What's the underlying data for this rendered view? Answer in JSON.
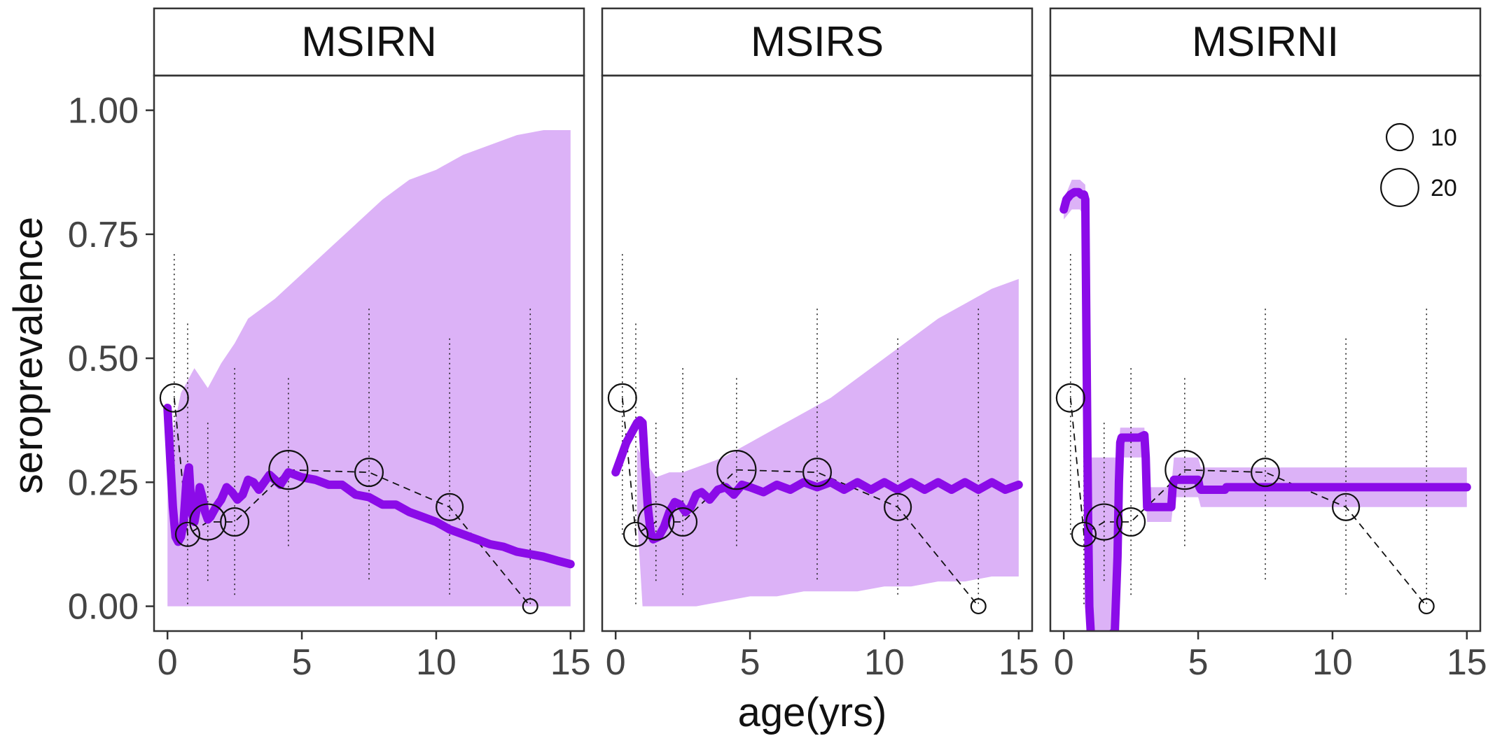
{
  "chart_data": {
    "type": "line",
    "ylabel": "seroprevalence",
    "xlabel": "age(yrs)",
    "xlim": [
      -0.5,
      15.5
    ],
    "ylim": [
      -0.05,
      1.07
    ],
    "x_ticks": [
      0,
      5,
      10,
      15
    ],
    "x_tick_labels": [
      "0",
      "5",
      "10",
      "15"
    ],
    "y_ticks": [
      0,
      0.25,
      0.5,
      0.75,
      1.0
    ],
    "y_tick_labels": [
      "0.00",
      "0.25",
      "0.50",
      "0.75",
      "1.00"
    ],
    "grid": false,
    "colors": {
      "line": "#8b0be8",
      "ribbon": "#dcb2f7",
      "points": "#111111",
      "strip_line": "#333333"
    },
    "legend": {
      "placement": "top-right",
      "title": "",
      "entries": [
        {
          "label": "10",
          "size": 10
        },
        {
          "label": "20",
          "size": 20
        }
      ]
    },
    "observed": {
      "description_free": true,
      "x": [
        0.25,
        0.75,
        1.5,
        2.5,
        4.5,
        7.5,
        10.5,
        13.5
      ],
      "y": [
        0.42,
        0.145,
        0.17,
        0.17,
        0.275,
        0.27,
        0.2,
        0.0
      ],
      "n": [
        11,
        8,
        18,
        11,
        21,
        11,
        10,
        3
      ],
      "ci_upper": [
        0.71,
        0.57,
        0.37,
        0.48,
        0.46,
        0.6,
        0.54,
        0.6
      ],
      "ci_lower": [
        0.14,
        0.0,
        0.05,
        0.02,
        0.12,
        0.05,
        0.02,
        0.0
      ]
    },
    "panels": [
      {
        "title": "MSIRN",
        "fit": {
          "x": [
            0,
            0.1,
            0.2,
            0.3,
            0.4,
            0.5,
            0.6,
            0.7,
            0.8,
            0.9,
            1.0,
            1.1,
            1.2,
            1.3,
            1.4,
            1.5,
            1.6,
            1.8,
            2.0,
            2.2,
            2.4,
            2.6,
            2.8,
            3.0,
            3.2,
            3.4,
            3.6,
            3.8,
            4.0,
            4.2,
            4.5,
            5.0,
            5.5,
            6.0,
            6.5,
            7.0,
            7.5,
            8.0,
            8.5,
            9.0,
            9.5,
            10.0,
            10.5,
            11.0,
            11.5,
            12.0,
            12.5,
            13.0,
            13.5,
            14.0,
            14.5,
            15.0
          ],
          "y": [
            0.4,
            0.3,
            0.2,
            0.14,
            0.13,
            0.14,
            0.17,
            0.25,
            0.28,
            0.19,
            0.17,
            0.2,
            0.24,
            0.22,
            0.19,
            0.175,
            0.18,
            0.2,
            0.215,
            0.24,
            0.23,
            0.215,
            0.225,
            0.255,
            0.25,
            0.235,
            0.25,
            0.265,
            0.255,
            0.245,
            0.27,
            0.26,
            0.255,
            0.245,
            0.245,
            0.225,
            0.22,
            0.205,
            0.205,
            0.19,
            0.18,
            0.17,
            0.155,
            0.145,
            0.135,
            0.125,
            0.12,
            0.11,
            0.105,
            0.1,
            0.092,
            0.085
          ]
        },
        "ribbon": {
          "x": [
            0,
            0.5,
            1,
            1.5,
            2,
            2.5,
            3,
            3.5,
            4,
            5,
            6,
            7,
            8,
            9,
            10,
            11,
            12,
            13,
            14,
            15
          ],
          "upper": [
            0.3,
            0.43,
            0.48,
            0.44,
            0.49,
            0.53,
            0.58,
            0.6,
            0.62,
            0.67,
            0.72,
            0.77,
            0.82,
            0.86,
            0.88,
            0.91,
            0.93,
            0.95,
            0.96,
            0.96
          ],
          "lower": [
            0,
            0,
            0,
            0,
            0,
            0,
            0,
            0,
            0,
            0,
            0,
            0,
            0,
            0,
            0,
            0,
            0,
            0,
            0,
            0
          ]
        }
      },
      {
        "title": "MSIRS",
        "fit": {
          "x": [
            0,
            0.2,
            0.4,
            0.6,
            0.8,
            0.9,
            1.0,
            1.1,
            1.2,
            1.3,
            1.4,
            1.6,
            1.8,
            2.0,
            2.2,
            2.4,
            2.6,
            2.8,
            3.0,
            3.2,
            3.5,
            3.8,
            4.1,
            4.4,
            4.7,
            5.0,
            5.5,
            6.0,
            6.5,
            7.0,
            7.5,
            8.0,
            8.5,
            9.0,
            9.5,
            10.0,
            10.5,
            11.0,
            11.5,
            12.0,
            12.5,
            13.0,
            13.5,
            14.0,
            14.5,
            15.0
          ],
          "y": [
            0.27,
            0.3,
            0.33,
            0.35,
            0.37,
            0.375,
            0.37,
            0.28,
            0.2,
            0.15,
            0.135,
            0.14,
            0.16,
            0.19,
            0.21,
            0.205,
            0.19,
            0.2,
            0.225,
            0.23,
            0.215,
            0.235,
            0.24,
            0.225,
            0.245,
            0.24,
            0.23,
            0.245,
            0.235,
            0.25,
            0.24,
            0.25,
            0.235,
            0.25,
            0.235,
            0.25,
            0.235,
            0.25,
            0.235,
            0.25,
            0.235,
            0.25,
            0.235,
            0.25,
            0.235,
            0.245
          ]
        },
        "ribbon": {
          "x": [
            0.8,
            1.0,
            1.5,
            2.0,
            2.5,
            3.0,
            4.0,
            5.0,
            6.0,
            7.0,
            8.0,
            9.0,
            10.0,
            11.0,
            12.0,
            13.0,
            14.0,
            15.0
          ],
          "upper": [
            0.32,
            0.3,
            0.26,
            0.27,
            0.27,
            0.28,
            0.3,
            0.33,
            0.36,
            0.39,
            0.42,
            0.46,
            0.5,
            0.54,
            0.58,
            0.61,
            0.64,
            0.66
          ],
          "lower": [
            0.18,
            0.0,
            0.0,
            0.0,
            0.0,
            0.0,
            0.01,
            0.02,
            0.02,
            0.03,
            0.03,
            0.03,
            0.04,
            0.04,
            0.05,
            0.05,
            0.06,
            0.06
          ]
        }
      },
      {
        "title": "MSIRNI",
        "fit": {
          "x": [
            0,
            0.1,
            0.25,
            0.4,
            0.55,
            0.65,
            0.75,
            0.8,
            0.85,
            0.9,
            0.95,
            1.0,
            1.05,
            1.1,
            1.3,
            1.5,
            1.7,
            1.9,
            2.0,
            2.05,
            2.1,
            2.15,
            2.5,
            2.8,
            3.0,
            3.05,
            3.1,
            3.6,
            3.9,
            4.0,
            4.05,
            4.1,
            4.5,
            5.0,
            5.05,
            5.1,
            6.0,
            6.05,
            6.1,
            7.0,
            8.0,
            9.0,
            10.0,
            11.0,
            12.0,
            13.0,
            14.0,
            15.0
          ],
          "y": [
            0.8,
            0.82,
            0.83,
            0.835,
            0.835,
            0.83,
            0.83,
            0.82,
            0.5,
            0.2,
            0.0,
            -0.05,
            -0.08,
            -0.08,
            -0.08,
            -0.07,
            -0.06,
            -0.05,
            0.1,
            0.25,
            0.33,
            0.34,
            0.34,
            0.34,
            0.345,
            0.3,
            0.2,
            0.2,
            0.2,
            0.2,
            0.24,
            0.255,
            0.255,
            0.255,
            0.24,
            0.235,
            0.235,
            0.24,
            0.24,
            0.24,
            0.24,
            0.24,
            0.24,
            0.24,
            0.24,
            0.24,
            0.24,
            0.24
          ]
        },
        "ribbon": {
          "x": [
            0,
            0.3,
            0.6,
            0.8,
            0.9,
            1.0,
            2.0,
            2.1,
            2.5,
            3.0,
            3.1,
            4.0,
            4.1,
            5.0,
            5.1,
            15.0
          ],
          "upper": [
            0.82,
            0.86,
            0.86,
            0.85,
            0.6,
            0.3,
            0.3,
            0.36,
            0.36,
            0.36,
            0.24,
            0.24,
            0.3,
            0.3,
            0.28,
            0.28
          ],
          "lower": [
            0.78,
            0.8,
            0.8,
            0.78,
            0.2,
            -0.08,
            -0.08,
            0.3,
            0.3,
            0.3,
            0.17,
            0.17,
            0.22,
            0.22,
            0.2,
            0.2
          ]
        },
        "show_legend": true
      }
    ]
  }
}
